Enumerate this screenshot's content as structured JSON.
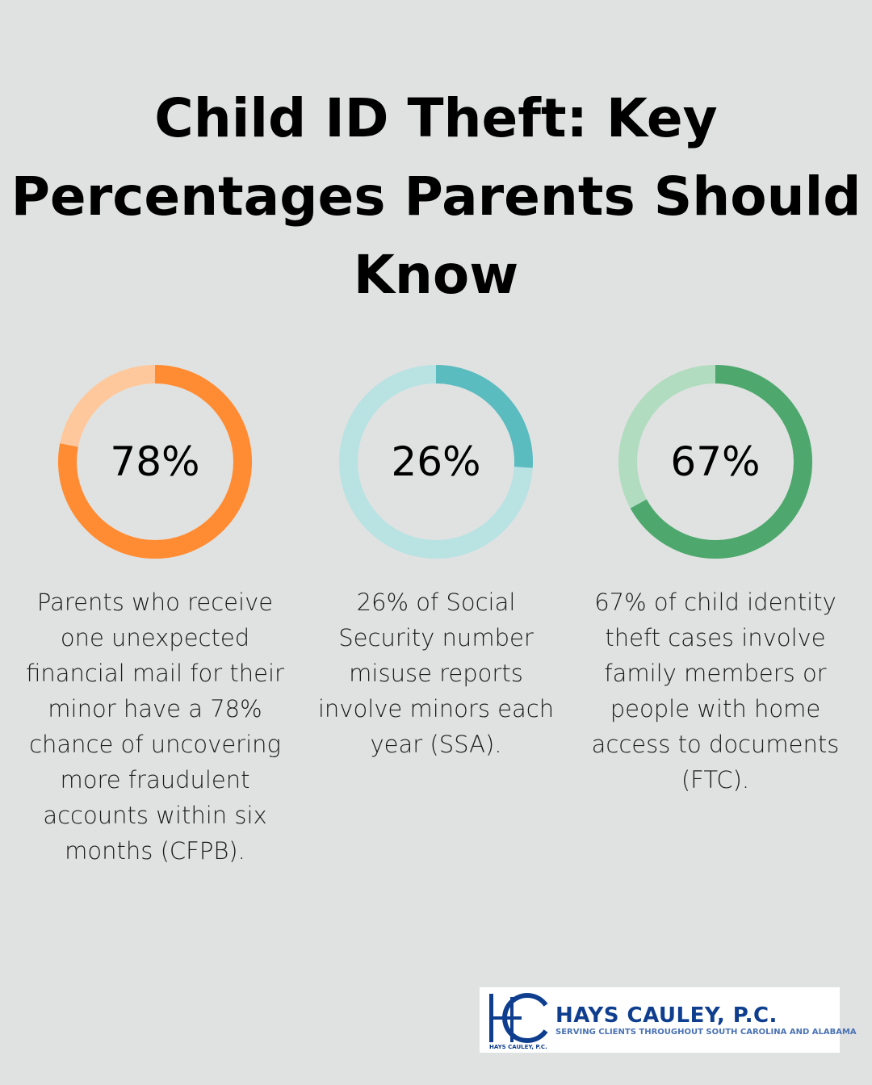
{
  "title": "Child ID Theft: Key Percentages Parents Should Know",
  "chart_data": [
    {
      "type": "pie",
      "variant": "donut",
      "value": 78,
      "label": "78%",
      "colors": {
        "fill": "#ff8b33",
        "track": "#ffc89c"
      },
      "description": "Parents who receive one unexpected financial mail for their minor have a 78% chance of uncovering more fraudulent accounts within six months (CFPB)."
    },
    {
      "type": "pie",
      "variant": "donut",
      "value": 26,
      "label": "26%",
      "colors": {
        "fill": "#5bbcc0",
        "track": "#b9e2e3"
      },
      "description": "26% of Social Security number misuse reports involve minors each year (SSA)."
    },
    {
      "type": "pie",
      "variant": "donut",
      "value": 67,
      "label": "67%",
      "colors": {
        "fill": "#4ea86d",
        "track": "#b1dcc0"
      },
      "description": "67% of child identity theft cases involve family members or people with home access to documents (FTC)."
    }
  ],
  "logo": {
    "name": "HAYS CAULEY, P.C.",
    "tagline": "SERVING CLIENTS THROUGHOUT SOUTH CAROLINA AND ALABAMA",
    "small": "HAYS CAULEY, P.C.",
    "color": "#0f3e8f"
  }
}
